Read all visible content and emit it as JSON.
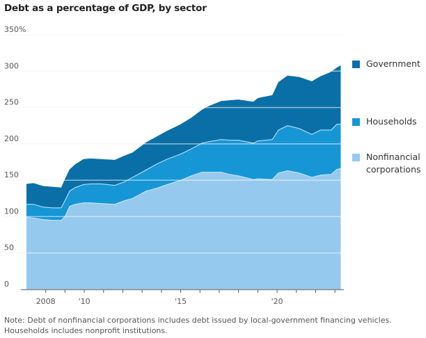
{
  "chart_data": {
    "type": "area",
    "stacked": true,
    "title": "Debt as a percentage of GDP, by sector",
    "xlabel": "",
    "ylabel": "",
    "xlim": [
      2006.72,
      2023.43
    ],
    "ylim": [
      0,
      350
    ],
    "y_ticks": [
      0,
      50,
      100,
      150,
      200,
      250,
      300,
      350
    ],
    "y_tick_labels": [
      "0",
      "50",
      "100",
      "150",
      "200",
      "250",
      "300",
      "350%"
    ],
    "x_ticks": [
      2008,
      2009,
      2010,
      2011,
      2012,
      2013,
      2014,
      2015,
      2016,
      2017,
      2018,
      2019,
      2020,
      2021,
      2022,
      2023
    ],
    "x_tick_labels": [
      {
        "year": 2008,
        "label": "2008"
      },
      {
        "year": 2010,
        "label": "'10"
      },
      {
        "year": 2015,
        "label": "'15"
      },
      {
        "year": 2020,
        "label": "'20"
      }
    ],
    "grid": true,
    "legend_position": "right",
    "x": [
      2007.0,
      2007.36,
      2007.87,
      2008.37,
      2008.8,
      2009.0,
      2009.24,
      2009.53,
      2009.96,
      2010.32,
      2010.86,
      2011.58,
      2012.1,
      2012.5,
      2013.2,
      2013.75,
      2014.3,
      2015.0,
      2015.55,
      2016.1,
      2016.45,
      2017.1,
      2017.55,
      2018.0,
      2018.77,
      2019.0,
      2019.75,
      2020.07,
      2020.54,
      2021.15,
      2021.8,
      2022.25,
      2022.8,
      2023.1,
      2023.3
    ],
    "series": [
      {
        "name": "Nonfinancial corporations",
        "color": "#96c9ee",
        "values": [
          99,
          98,
          96,
          95,
          95,
          100,
          114,
          117,
          119,
          119,
          118,
          117,
          122,
          125,
          135,
          139,
          144,
          150,
          156,
          161,
          161,
          161,
          158,
          156,
          151,
          152,
          151,
          160,
          163,
          160,
          154,
          157,
          158,
          165,
          166
        ]
      },
      {
        "name": "Households",
        "color": "#1796d6",
        "values": [
          18,
          19,
          17,
          17,
          17,
          22,
          21,
          23,
          25,
          26,
          27,
          26,
          26,
          29,
          29,
          33,
          35,
          36,
          37,
          40,
          42,
          45,
          47,
          49,
          50,
          52,
          55,
          59,
          62,
          61,
          59,
          62,
          61,
          62,
          61
        ]
      },
      {
        "name": "Government",
        "color": "#0b6fa7",
        "values": [
          28,
          29,
          29,
          29,
          28,
          30,
          30,
          32,
          35,
          35,
          34,
          35,
          36,
          34,
          38,
          38,
          39,
          41,
          43,
          46,
          49,
          53,
          55,
          56,
          57,
          59,
          61,
          66,
          69,
          71,
          73,
          74,
          80,
          78,
          81
        ]
      }
    ]
  },
  "legend": [
    {
      "label": "Government",
      "color": "#0b6fa7"
    },
    {
      "label": "Households",
      "color": "#1796d6"
    },
    {
      "label": "Nonfinancial\ncorporations",
      "color": "#96c9ee"
    }
  ],
  "note": "Note: Debt of nonfinancial corporations includes debt issued by local-government financing vehicles.\nHouseholds includes nonprofit institutions."
}
